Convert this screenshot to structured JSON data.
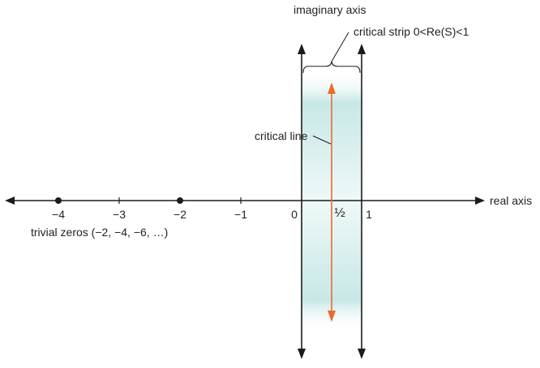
{
  "colors": {
    "axis": "#1c1c1c",
    "strip_fill": "#5fbcb9",
    "critical_line": "#ec6a2a",
    "text": "#222222"
  },
  "labels": {
    "imaginary_axis": "imaginary axis",
    "real_axis": "real axis",
    "critical_strip": "critical strip 0<Re(S)<1",
    "critical_line": "critical line",
    "trivial_zeros": "trivial zeros (−2, −4, −6, …)"
  },
  "ticks": [
    {
      "value": -4,
      "label": "−4"
    },
    {
      "value": -3,
      "label": "−3"
    },
    {
      "value": -2,
      "label": "−2"
    },
    {
      "value": -1,
      "label": "−1"
    },
    {
      "value": 0,
      "label": "0"
    },
    {
      "value": 0.5,
      "label": "½"
    },
    {
      "value": 1,
      "label": "1"
    }
  ],
  "trivial_zero_points": [
    -4,
    -2
  ],
  "strip": {
    "re_min": 0,
    "re_max": 1
  },
  "critical_line_re": 0.5
}
